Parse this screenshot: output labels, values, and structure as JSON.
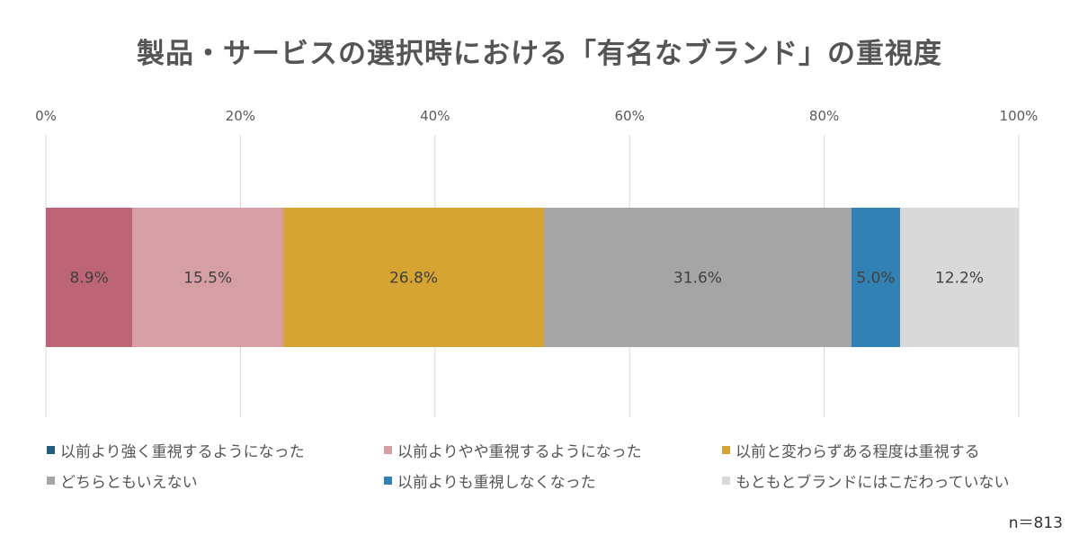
{
  "chart_data": {
    "type": "bar",
    "orientation": "horizontal",
    "stacked": "percent",
    "title": "製品・サービスの選択時における「有名なブランド」の重視度",
    "xlim": [
      0,
      100
    ],
    "x_ticks": [
      "0%",
      "20%",
      "40%",
      "60%",
      "80%",
      "100%"
    ],
    "grid": true,
    "legend_position": "bottom",
    "series": [
      {
        "name": "以前より強く重視するようになった",
        "value": 8.9,
        "label": "8.9%",
        "color": "#bd6577",
        "legend_color": "#1f5c80"
      },
      {
        "name": "以前よりやや重視するようになった",
        "value": 15.5,
        "label": "15.5%",
        "color": "#d69fa6",
        "legend_color": "#d69fa6"
      },
      {
        "name": "以前と変わらずある程度は重視する",
        "value": 26.8,
        "label": "26.8%",
        "color": "#d5a432",
        "legend_color": "#d5a432"
      },
      {
        "name": "どちらともいえない",
        "value": 31.6,
        "label": "31.6%",
        "color": "#a5a5a5",
        "legend_color": "#a5a5a5"
      },
      {
        "name": "以前よりも重視しなくなった",
        "value": 5.0,
        "label": "5.0%",
        "color": "#3181b4",
        "legend_color": "#3181b4"
      },
      {
        "name": "もともとブランドにはこだわっていない",
        "value": 12.2,
        "label": "12.2%",
        "color": "#d9d9d9",
        "legend_color": "#d9d9d9"
      }
    ]
  },
  "sample_size": "n＝813"
}
